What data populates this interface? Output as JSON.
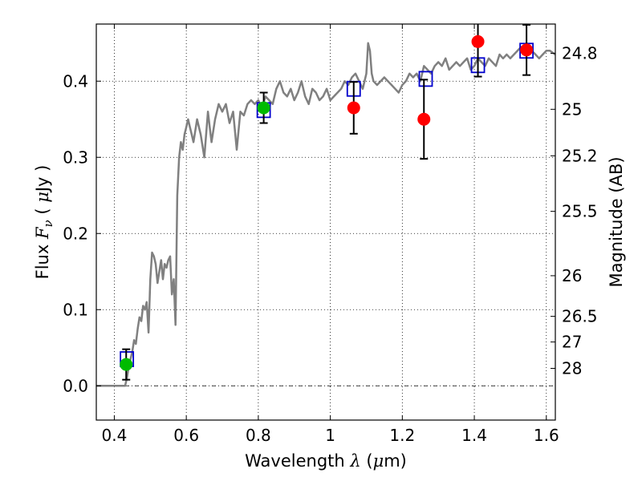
{
  "chart_data": {
    "type": "scatter",
    "xlabel_parts": {
      "prefix": "Wavelength  ",
      "symbol": "λ",
      "unit_open": " (",
      "unit_symbol": "μ",
      "unit_rest": "m)"
    },
    "ylabel_parts": {
      "prefix": "Flux  ",
      "symbol": "F",
      "subscript": "ν",
      "mid": "  ( ",
      "unit_symbol": "μ",
      "unit_rest": "Jy )"
    },
    "y2label": "Magnitude (AB)",
    "xlim": [
      0.35,
      1.625
    ],
    "ylim": [
      -0.045,
      0.475
    ],
    "grid": true,
    "x_ticks": [
      {
        "v": 0.4,
        "label": "0.4"
      },
      {
        "v": 0.6,
        "label": "0.6"
      },
      {
        "v": 0.8,
        "label": "0.8"
      },
      {
        "v": 1.0,
        "label": "1"
      },
      {
        "v": 1.2,
        "label": "1.2"
      },
      {
        "v": 1.4,
        "label": "1.4"
      },
      {
        "v": 1.6,
        "label": "1.6"
      }
    ],
    "y_ticks": [
      {
        "v": 0.0,
        "label": "0.0"
      },
      {
        "v": 0.1,
        "label": "0.1"
      },
      {
        "v": 0.2,
        "label": "0.2"
      },
      {
        "v": 0.3,
        "label": "0.3"
      },
      {
        "v": 0.4,
        "label": "0.4"
      }
    ],
    "magnitude_ticks": [
      {
        "mag": 24.8,
        "label": "24.8"
      },
      {
        "mag": 25.0,
        "label": "25"
      },
      {
        "mag": 25.2,
        "label": "25.2"
      },
      {
        "mag": 25.5,
        "label": "25.5"
      },
      {
        "mag": 26.0,
        "label": "26"
      },
      {
        "mag": 26.5,
        "label": "26.5"
      },
      {
        "mag": 27.0,
        "label": "27"
      },
      {
        "mag": 28.0,
        "label": "28"
      }
    ],
    "zero_line": 0.0,
    "series": [
      {
        "name": "model-spectrum",
        "kind": "line",
        "color": "#808080",
        "x": [
          0.35,
          0.43,
          0.435,
          0.44,
          0.445,
          0.45,
          0.455,
          0.46,
          0.465,
          0.47,
          0.475,
          0.48,
          0.485,
          0.49,
          0.495,
          0.5,
          0.505,
          0.51,
          0.515,
          0.52,
          0.525,
          0.53,
          0.535,
          0.54,
          0.545,
          0.55,
          0.555,
          0.56,
          0.565,
          0.57,
          0.575,
          0.58,
          0.585,
          0.59,
          0.595,
          0.6,
          0.605,
          0.61,
          0.615,
          0.62,
          0.63,
          0.64,
          0.65,
          0.66,
          0.665,
          0.67,
          0.68,
          0.69,
          0.7,
          0.71,
          0.72,
          0.73,
          0.74,
          0.75,
          0.76,
          0.77,
          0.78,
          0.79,
          0.8,
          0.81,
          0.82,
          0.83,
          0.84,
          0.85,
          0.86,
          0.87,
          0.88,
          0.89,
          0.9,
          0.91,
          0.92,
          0.93,
          0.94,
          0.95,
          0.96,
          0.97,
          0.98,
          0.99,
          1.0,
          1.01,
          1.02,
          1.03,
          1.04,
          1.05,
          1.06,
          1.07,
          1.08,
          1.09,
          1.1,
          1.105,
          1.11,
          1.115,
          1.12,
          1.13,
          1.14,
          1.15,
          1.16,
          1.17,
          1.18,
          1.19,
          1.2,
          1.21,
          1.22,
          1.23,
          1.24,
          1.25,
          1.26,
          1.27,
          1.28,
          1.29,
          1.3,
          1.31,
          1.32,
          1.33,
          1.34,
          1.35,
          1.36,
          1.37,
          1.38,
          1.39,
          1.4,
          1.41,
          1.42,
          1.43,
          1.44,
          1.45,
          1.46,
          1.47,
          1.48,
          1.49,
          1.5,
          1.51,
          1.52,
          1.53,
          1.54,
          1.55,
          1.56,
          1.57,
          1.58,
          1.59,
          1.6,
          1.61,
          1.625
        ],
        "y": [
          0.0,
          0.0,
          0.01,
          0.025,
          0.035,
          0.045,
          0.06,
          0.055,
          0.075,
          0.09,
          0.085,
          0.105,
          0.1,
          0.11,
          0.07,
          0.14,
          0.175,
          0.17,
          0.16,
          0.135,
          0.15,
          0.165,
          0.14,
          0.16,
          0.155,
          0.165,
          0.17,
          0.12,
          0.14,
          0.08,
          0.25,
          0.3,
          0.32,
          0.31,
          0.33,
          0.34,
          0.35,
          0.34,
          0.33,
          0.32,
          0.35,
          0.33,
          0.3,
          0.36,
          0.34,
          0.32,
          0.35,
          0.37,
          0.36,
          0.37,
          0.345,
          0.36,
          0.31,
          0.36,
          0.355,
          0.37,
          0.375,
          0.37,
          0.375,
          0.365,
          0.38,
          0.375,
          0.37,
          0.39,
          0.4,
          0.385,
          0.38,
          0.39,
          0.375,
          0.385,
          0.4,
          0.38,
          0.37,
          0.39,
          0.385,
          0.375,
          0.38,
          0.39,
          0.375,
          0.38,
          0.385,
          0.39,
          0.4,
          0.395,
          0.405,
          0.41,
          0.4,
          0.39,
          0.41,
          0.45,
          0.44,
          0.41,
          0.4,
          0.395,
          0.4,
          0.405,
          0.4,
          0.395,
          0.39,
          0.385,
          0.395,
          0.4,
          0.41,
          0.405,
          0.41,
          0.4,
          0.42,
          0.415,
          0.41,
          0.42,
          0.425,
          0.42,
          0.43,
          0.415,
          0.42,
          0.425,
          0.42,
          0.425,
          0.43,
          0.415,
          0.42,
          0.43,
          0.425,
          0.42,
          0.43,
          0.425,
          0.42,
          0.435,
          0.43,
          0.435,
          0.43,
          0.435,
          0.44,
          0.445,
          0.44,
          0.445,
          0.44,
          0.435,
          0.43,
          0.435,
          0.44,
          0.44,
          0.435
        ]
      },
      {
        "name": "blue-squares",
        "kind": "square",
        "color": "#0000cc",
        "points": [
          {
            "x": 0.435,
            "y": 0.035
          },
          {
            "x": 0.815,
            "y": 0.362
          },
          {
            "x": 1.065,
            "y": 0.39
          },
          {
            "x": 1.265,
            "y": 0.403
          },
          {
            "x": 1.41,
            "y": 0.421
          },
          {
            "x": 1.545,
            "y": 0.44
          }
        ]
      },
      {
        "name": "green-circles",
        "kind": "circle",
        "color": "#00bb00",
        "points": [
          {
            "x": 0.433,
            "y": 0.028,
            "err": 0.02
          },
          {
            "x": 0.815,
            "y": 0.365,
            "err": 0.02
          }
        ]
      },
      {
        "name": "red-circles",
        "kind": "circle",
        "color": "#ff0000",
        "points": [
          {
            "x": 1.065,
            "y": 0.365,
            "err": 0.034
          },
          {
            "x": 1.26,
            "y": 0.35,
            "err": 0.052
          },
          {
            "x": 1.41,
            "y": 0.452,
            "err": 0.046
          },
          {
            "x": 1.545,
            "y": 0.441,
            "err": 0.033
          }
        ]
      }
    ]
  }
}
